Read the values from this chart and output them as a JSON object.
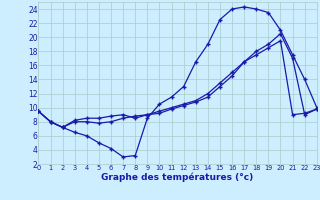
{
  "xlabel": "Graphe des températures (°c)",
  "background_color": "#cceeff",
  "grid_color": "#aacccc",
  "line_color": "#1a1aaa",
  "xlim": [
    0,
    23
  ],
  "ylim": [
    2,
    25
  ],
  "yticks": [
    2,
    4,
    6,
    8,
    10,
    12,
    14,
    16,
    18,
    20,
    22,
    24
  ],
  "xticks": [
    0,
    1,
    2,
    3,
    4,
    5,
    6,
    7,
    8,
    9,
    10,
    11,
    12,
    13,
    14,
    15,
    16,
    17,
    18,
    19,
    20,
    21,
    22,
    23
  ],
  "curve1_x": [
    0,
    1,
    2,
    3,
    4,
    5,
    6,
    7,
    8,
    9,
    10,
    11,
    12,
    13,
    14,
    15,
    16,
    17,
    18,
    19,
    20,
    21,
    22,
    23
  ],
  "curve1_y": [
    9.5,
    8.0,
    7.2,
    6.5,
    6.0,
    5.0,
    4.2,
    3.0,
    3.2,
    8.5,
    10.5,
    11.5,
    13.0,
    16.5,
    19.0,
    22.5,
    24.0,
    24.3,
    24.0,
    23.5,
    21.0,
    17.5,
    14.0,
    10.0
  ],
  "curve2_x": [
    0,
    1,
    2,
    3,
    4,
    5,
    6,
    7,
    8,
    9,
    10,
    11,
    12,
    13,
    14,
    15,
    16,
    17,
    18,
    19,
    20,
    21,
    22,
    23
  ],
  "curve2_y": [
    9.5,
    8.0,
    7.2,
    8.2,
    8.5,
    8.5,
    8.8,
    9.0,
    8.5,
    9.0,
    9.5,
    10.0,
    10.5,
    11.0,
    12.0,
    13.5,
    15.0,
    16.5,
    18.0,
    19.0,
    20.5,
    17.0,
    9.0,
    9.8
  ],
  "curve3_x": [
    0,
    1,
    2,
    3,
    4,
    5,
    6,
    7,
    8,
    9,
    10,
    11,
    12,
    13,
    14,
    15,
    16,
    17,
    18,
    19,
    20,
    21,
    22,
    23
  ],
  "curve3_y": [
    9.5,
    8.0,
    7.2,
    8.0,
    8.0,
    7.8,
    8.0,
    8.5,
    8.8,
    9.0,
    9.2,
    9.8,
    10.3,
    10.8,
    11.5,
    13.0,
    14.5,
    16.5,
    17.5,
    18.5,
    19.5,
    9.0,
    9.2,
    9.8
  ]
}
